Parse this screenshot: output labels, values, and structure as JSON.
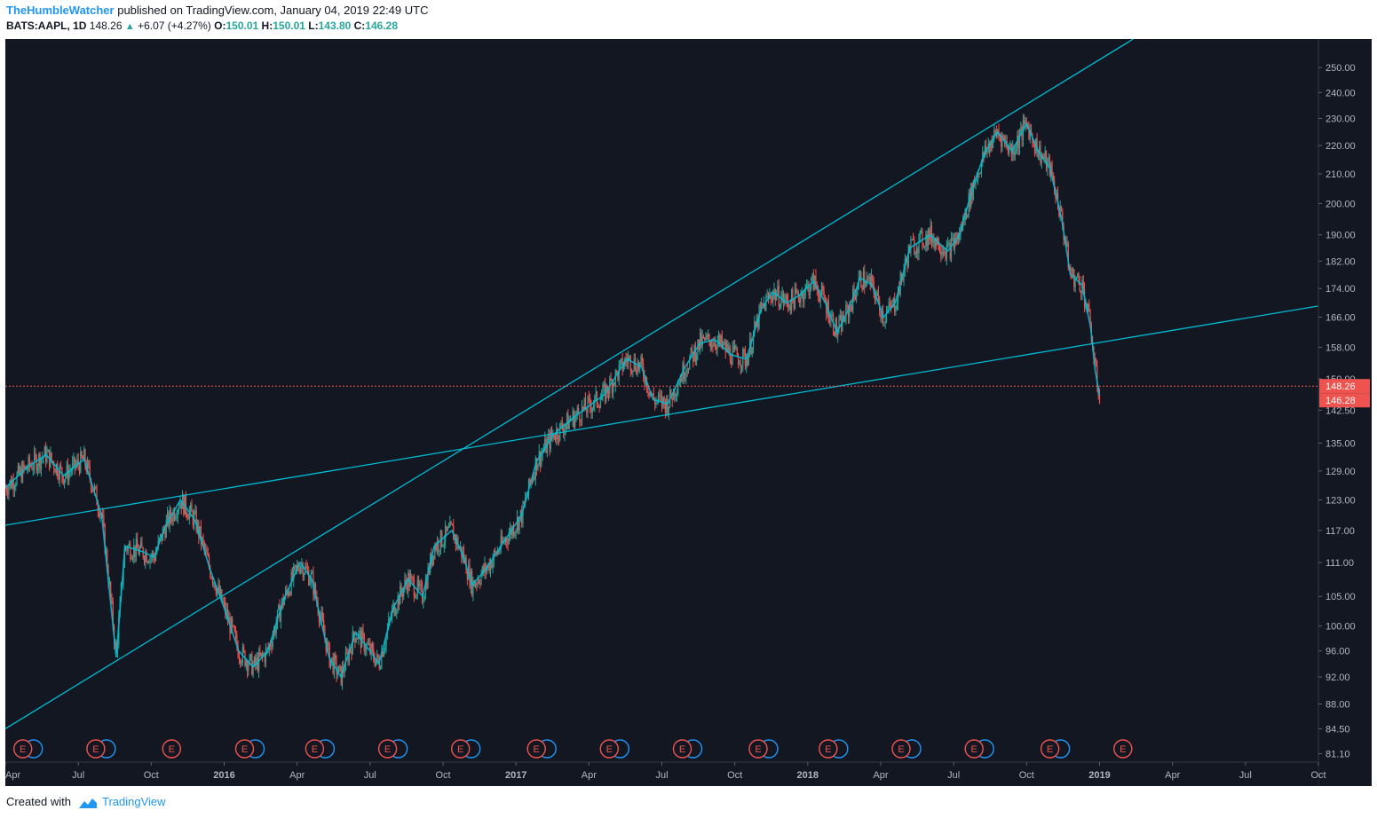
{
  "header": {
    "author": "TheHumbleWatcher",
    "published": "published on TradingView.com, January 04, 2019 22:49 UTC",
    "symbol": "BATS:AAPL, 1D",
    "last": "148.26",
    "change": "+6.07 (+4.27%)",
    "open_label": "O:",
    "open": "150.01",
    "high_label": "H:",
    "high": "150.01",
    "low_label": "L:",
    "low": "143.80",
    "close_label": "C:",
    "close": "146.28"
  },
  "footer": {
    "created_with": "Created with",
    "brand": "TradingView"
  },
  "colors": {
    "background": "#131722",
    "up": "#26a69a",
    "down": "#ef5350",
    "trendline": "#00bcd4",
    "price_line": "#ef5350",
    "axis_text": "#b2b5be",
    "earnings": "#ef5350",
    "dividend": "#2196f3"
  },
  "chart_data": {
    "type": "candlestick",
    "title": "BATS:AAPL, 1D",
    "xlim": [
      2015.25,
      2019.75
    ],
    "ylim": [
      80.0,
      262.0
    ],
    "y_scale": "log",
    "y_ticks": [
      "250.00",
      "240.00",
      "230.00",
      "220.00",
      "210.00",
      "200.00",
      "190.00",
      "182.00",
      "174.00",
      "166.00",
      "158.00",
      "150.00",
      "142.50",
      "135.00",
      "129.00",
      "123.00",
      "117.00",
      "111.00",
      "105.00",
      "100.00",
      "96.00",
      "92.00",
      "88.00",
      "84.50",
      "81.10"
    ],
    "x_ticks": [
      {
        "label": "Apr",
        "t": 2015.25,
        "bold": false
      },
      {
        "label": "Jul",
        "t": 2015.5,
        "bold": false
      },
      {
        "label": "Oct",
        "t": 2015.75,
        "bold": false
      },
      {
        "label": "2016",
        "t": 2016.0,
        "bold": true
      },
      {
        "label": "Apr",
        "t": 2016.25,
        "bold": false
      },
      {
        "label": "Jul",
        "t": 2016.5,
        "bold": false
      },
      {
        "label": "Oct",
        "t": 2016.75,
        "bold": false
      },
      {
        "label": "2017",
        "t": 2017.0,
        "bold": true
      },
      {
        "label": "Apr",
        "t": 2017.25,
        "bold": false
      },
      {
        "label": "Jul",
        "t": 2017.5,
        "bold": false
      },
      {
        "label": "Oct",
        "t": 2017.75,
        "bold": false
      },
      {
        "label": "2018",
        "t": 2018.0,
        "bold": true
      },
      {
        "label": "Apr",
        "t": 2018.25,
        "bold": false
      },
      {
        "label": "Jul",
        "t": 2018.5,
        "bold": false
      },
      {
        "label": "Oct",
        "t": 2018.75,
        "bold": false
      },
      {
        "label": "2019",
        "t": 2019.0,
        "bold": true
      },
      {
        "label": "Apr",
        "t": 2019.25,
        "bold": false
      },
      {
        "label": "Jul",
        "t": 2019.5,
        "bold": false
      },
      {
        "label": "Oct",
        "t": 2019.75,
        "bold": false
      }
    ],
    "price_path": [
      [
        2015.25,
        125.5
      ],
      [
        2015.33,
        130.0
      ],
      [
        2015.39,
        132.5
      ],
      [
        2015.45,
        128.0
      ],
      [
        2015.52,
        131.5
      ],
      [
        2015.58,
        120.0
      ],
      [
        2015.63,
        95.0
      ],
      [
        2015.66,
        114.0
      ],
      [
        2015.72,
        113.0
      ],
      [
        2015.76,
        112.0
      ],
      [
        2015.8,
        118.0
      ],
      [
        2015.85,
        123.0
      ],
      [
        2015.9,
        119.0
      ],
      [
        2015.95,
        110.0
      ],
      [
        2016.0,
        103.0
      ],
      [
        2016.05,
        96.0
      ],
      [
        2016.1,
        93.5
      ],
      [
        2016.15,
        96.0
      ],
      [
        2016.2,
        104.0
      ],
      [
        2016.26,
        111.0
      ],
      [
        2016.3,
        108.0
      ],
      [
        2016.36,
        95.0
      ],
      [
        2016.4,
        92.0
      ],
      [
        2016.45,
        99.0
      ],
      [
        2016.5,
        96.0
      ],
      [
        2016.53,
        94.0
      ],
      [
        2016.58,
        103.0
      ],
      [
        2016.63,
        108.0
      ],
      [
        2016.68,
        105.0
      ],
      [
        2016.72,
        114.0
      ],
      [
        2016.78,
        117.0
      ],
      [
        2016.82,
        112.0
      ],
      [
        2016.85,
        107.0
      ],
      [
        2016.9,
        110.0
      ],
      [
        2016.96,
        115.0
      ],
      [
        2017.02,
        120.0
      ],
      [
        2017.07,
        131.0
      ],
      [
        2017.13,
        137.0
      ],
      [
        2017.2,
        141.0
      ],
      [
        2017.25,
        143.5
      ],
      [
        2017.3,
        146.0
      ],
      [
        2017.38,
        155.0
      ],
      [
        2017.43,
        153.0
      ],
      [
        2017.47,
        145.0
      ],
      [
        2017.52,
        144.0
      ],
      [
        2017.58,
        153.0
      ],
      [
        2017.63,
        159.0
      ],
      [
        2017.68,
        160.0
      ],
      [
        2017.74,
        156.0
      ],
      [
        2017.79,
        155.0
      ],
      [
        2017.84,
        168.0
      ],
      [
        2017.88,
        173.0
      ],
      [
        2017.93,
        170.0
      ],
      [
        2017.97,
        172.0
      ],
      [
        2018.02,
        176.0
      ],
      [
        2018.06,
        170.0
      ],
      [
        2018.1,
        162.0
      ],
      [
        2018.14,
        168.0
      ],
      [
        2018.18,
        177.0
      ],
      [
        2018.22,
        175.0
      ],
      [
        2018.26,
        166.0
      ],
      [
        2018.3,
        170.0
      ],
      [
        2018.35,
        186.0
      ],
      [
        2018.42,
        190.0
      ],
      [
        2018.48,
        185.0
      ],
      [
        2018.52,
        190.0
      ],
      [
        2018.57,
        207.0
      ],
      [
        2018.61,
        218.0
      ],
      [
        2018.65,
        225.0
      ],
      [
        2018.7,
        218.0
      ],
      [
        2018.75,
        228.0
      ],
      [
        2018.79,
        218.0
      ],
      [
        2018.83,
        212.0
      ],
      [
        2018.87,
        195.0
      ],
      [
        2018.9,
        178.0
      ],
      [
        2018.94,
        175.0
      ],
      [
        2018.97,
        163.0
      ],
      [
        2018.985,
        152.0
      ],
      [
        2019.0,
        146.0
      ]
    ],
    "trendlines": [
      {
        "name": "upper-channel",
        "t1": 2015.25,
        "p1": 84.5,
        "t2": 2018.7,
        "p2": 232.0,
        "extend": true
      },
      {
        "name": "lower-support",
        "t1": 2015.25,
        "p1": 118.0,
        "t2": 2018.5,
        "p2": 153.0,
        "extend": true
      }
    ],
    "current_price": 148.26,
    "price_labels": [
      {
        "text": "148.26",
        "value": 148.26
      },
      {
        "text": "146.28",
        "value": 146.28
      }
    ],
    "earnings_markers": [
      {
        "t": 2015.31,
        "label": "E",
        "dividend": true
      },
      {
        "t": 2015.56,
        "label": "E",
        "dividend": true
      },
      {
        "t": 2015.82,
        "label": "E",
        "dividend": false
      },
      {
        "t": 2016.07,
        "label": "E",
        "dividend": true
      },
      {
        "t": 2016.31,
        "label": "E",
        "dividend": true
      },
      {
        "t": 2016.56,
        "label": "E",
        "dividend": true
      },
      {
        "t": 2016.81,
        "label": "E",
        "dividend": true
      },
      {
        "t": 2017.07,
        "label": "E",
        "dividend": true
      },
      {
        "t": 2017.32,
        "label": "E",
        "dividend": true
      },
      {
        "t": 2017.57,
        "label": "E",
        "dividend": true
      },
      {
        "t": 2017.83,
        "label": "E",
        "dividend": true
      },
      {
        "t": 2018.07,
        "label": "E",
        "dividend": true
      },
      {
        "t": 2018.32,
        "label": "E",
        "dividend": true
      },
      {
        "t": 2018.57,
        "label": "E",
        "dividend": true
      },
      {
        "t": 2018.83,
        "label": "E",
        "dividend": true
      },
      {
        "t": 2019.08,
        "label": "E",
        "dividend": false
      }
    ]
  }
}
